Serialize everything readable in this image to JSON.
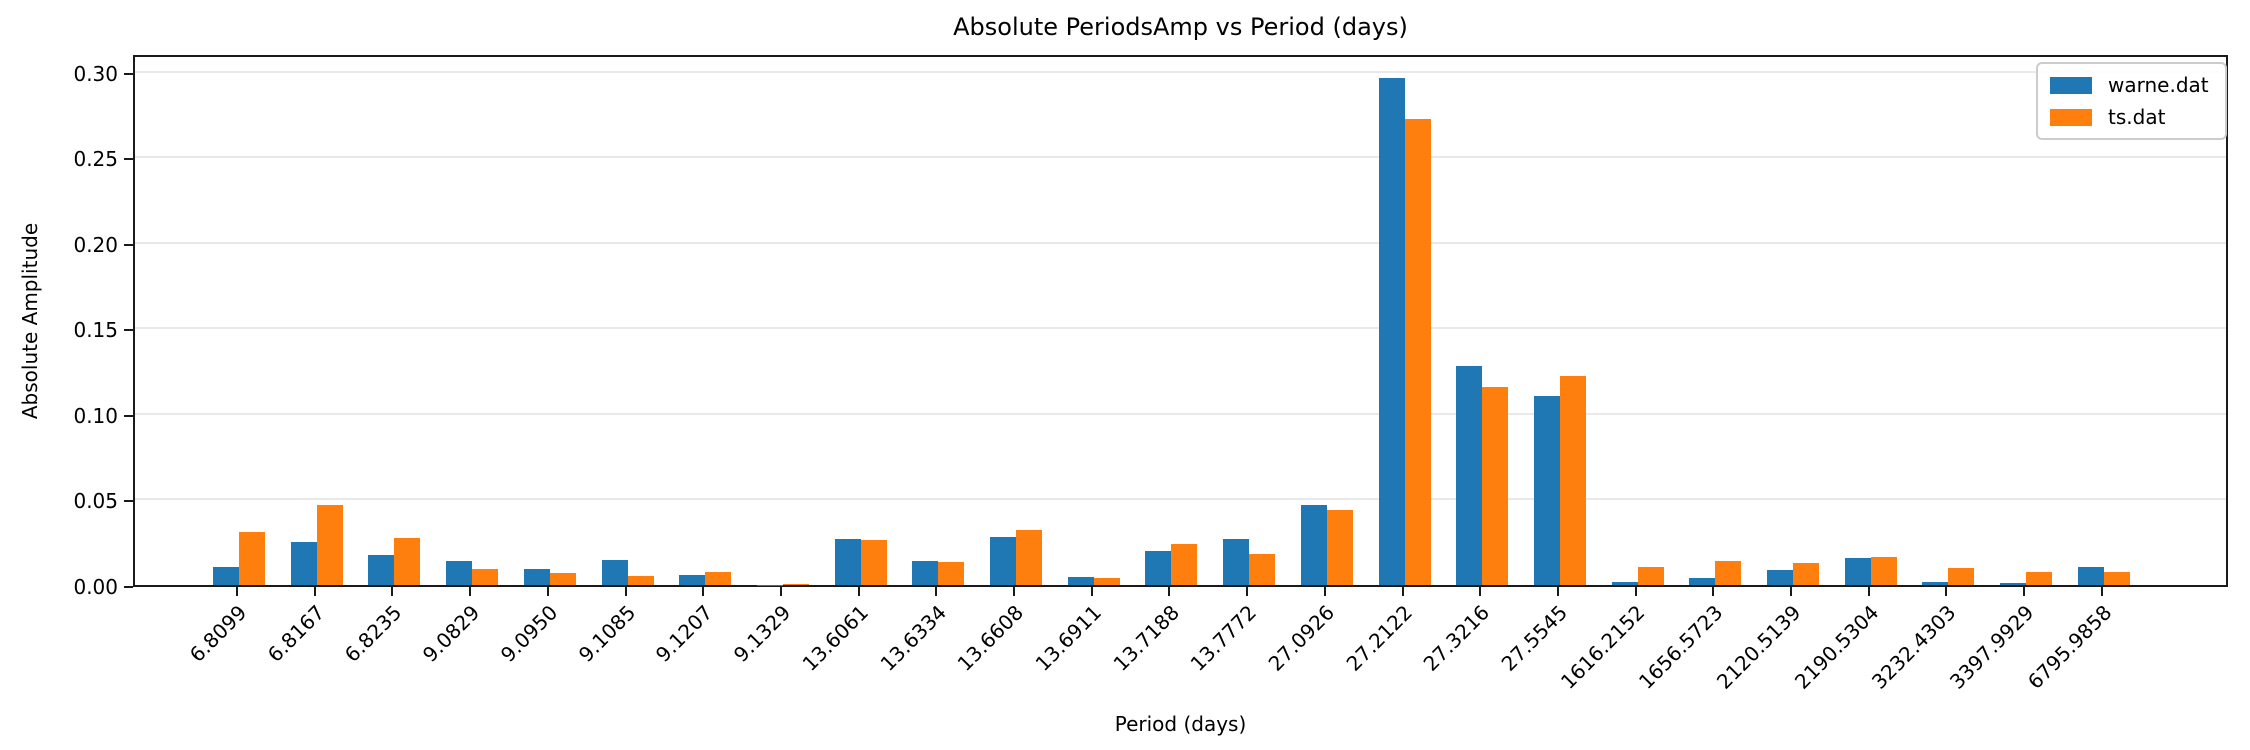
{
  "chart_data": {
    "type": "bar",
    "title": "Absolute PeriodsAmp vs Period (days)",
    "xlabel": "Period (days)",
    "ylabel": "Absolute Amplitude",
    "categories": [
      "6.8099",
      "6.8167",
      "6.8235",
      "9.0829",
      "9.0950",
      "9.1085",
      "9.1207",
      "9.1329",
      "13.6061",
      "13.6334",
      "13.6608",
      "13.6911",
      "13.7188",
      "13.7772",
      "27.0926",
      "27.2122",
      "27.3216",
      "27.5545",
      "1616.2152",
      "1656.5723",
      "2120.5139",
      "2190.5304",
      "3232.4303",
      "3397.9929",
      "6795.9858"
    ],
    "series": [
      {
        "name": "warne.dat",
        "color": "#1f77b4",
        "values": [
          0.0108,
          0.0251,
          0.0174,
          0.0138,
          0.0091,
          0.0147,
          0.0057,
          0.0003,
          0.0267,
          0.0138,
          0.0283,
          0.0047,
          0.0198,
          0.0271,
          0.0465,
          0.2962,
          0.1283,
          0.1106,
          0.0015,
          0.0042,
          0.0085,
          0.0156,
          0.0018,
          0.0014,
          0.0104
        ]
      },
      {
        "name": "ts.dat",
        "color": "#ff7f0e",
        "values": [
          0.0311,
          0.0466,
          0.0277,
          0.0094,
          0.0072,
          0.0051,
          0.0077,
          0.0008,
          0.0264,
          0.0132,
          0.0321,
          0.0039,
          0.0241,
          0.0182,
          0.0439,
          0.2722,
          0.1157,
          0.1224,
          0.0108,
          0.0138,
          0.0128,
          0.0163,
          0.0102,
          0.0075,
          0.0078
        ]
      }
    ],
    "ylim": [
      0,
      0.311
    ],
    "yticks": [
      0,
      0.05,
      0.1,
      0.15,
      0.2,
      0.25,
      0.3
    ],
    "ytick_labels": [
      "0.00",
      "0.05",
      "0.10",
      "0.15",
      "0.20",
      "0.25",
      "0.30"
    ],
    "grid": true,
    "legend_position": "upper right"
  }
}
